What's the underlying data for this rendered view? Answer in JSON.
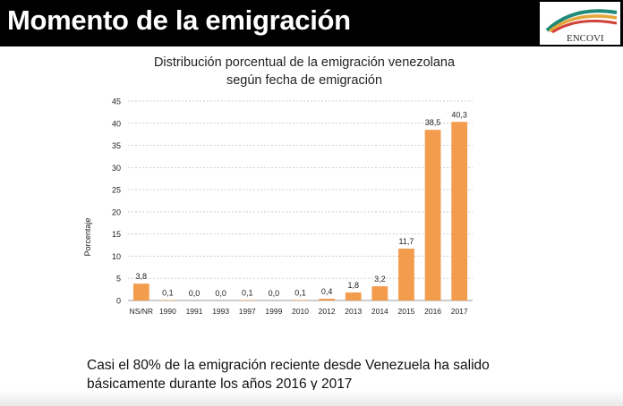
{
  "header": {
    "title": "Momento de la emigración",
    "logo_text": "ENCOVI"
  },
  "chart_data": {
    "type": "bar",
    "title": "Distribución porcentual de la emigración venezolana",
    "subtitle": "según fecha de emigración",
    "ylabel": "Porcentaje",
    "xlabel": "",
    "ylim": [
      0,
      45
    ],
    "yticks": [
      0,
      5,
      10,
      15,
      20,
      25,
      30,
      35,
      40,
      45
    ],
    "grid": true,
    "bar_color": "#f39c4e",
    "categories": [
      "NS/NR",
      "1990",
      "1991",
      "1993",
      "1997",
      "1999",
      "2010",
      "2012",
      "2013",
      "2014",
      "2015",
      "2016",
      "2017"
    ],
    "values": [
      3.8,
      0.1,
      0.0,
      0.0,
      0.1,
      0.0,
      0.1,
      0.4,
      1.8,
      3.2,
      11.7,
      38.5,
      40.3
    ],
    "value_labels": [
      "3,8",
      "0,1",
      "0,0",
      "0,0",
      "0,1",
      "0,0",
      "0,1",
      "0,4",
      "1,8",
      "3,2",
      "11,7",
      "38,5",
      "40,3"
    ]
  },
  "footer": {
    "line1": "Casi el 80% de la emigración reciente desde Venezuela ha salido",
    "line2": "básicamente durante los años 2016 y 2017"
  }
}
